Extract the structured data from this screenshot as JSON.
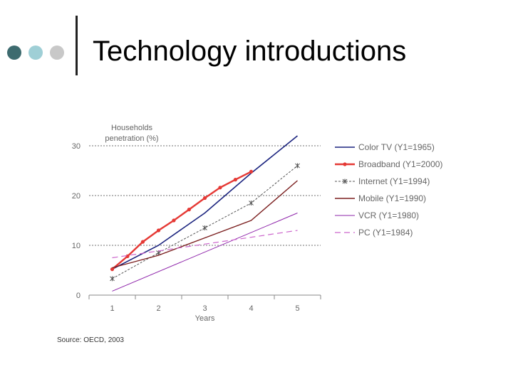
{
  "slide": {
    "title": "Technology introductions",
    "bullet_colors": [
      "#3d6b6f",
      "#9fcfd6",
      "#c8c8c8"
    ],
    "source": "Source: OECD, 2003"
  },
  "chart_data": {
    "type": "line",
    "title": "",
    "ylabel_lines": [
      "Households",
      "penetration (%)"
    ],
    "xlabel": "Years",
    "x": [
      1,
      2,
      3,
      4,
      5
    ],
    "xlim": [
      0.5,
      5.5
    ],
    "ylim": [
      0,
      30
    ],
    "yticks": [
      0,
      10,
      20,
      30
    ],
    "grid": "horizontal dotted",
    "legend_position": "right",
    "series": [
      {
        "name": "Color TV (Y1=1965)",
        "color": "#1a237e",
        "width": 1.6,
        "dash": "",
        "marker": "none",
        "points": [
          [
            1,
            5.2
          ],
          [
            2,
            10
          ],
          [
            3,
            16.5
          ],
          [
            4,
            24.5
          ],
          [
            5,
            32
          ]
        ]
      },
      {
        "name": "Broadband (Y1=2000)",
        "color": "#e53935",
        "width": 2.4,
        "dash": "",
        "marker": "dot",
        "points": [
          [
            1,
            5.2
          ],
          [
            1.33,
            7.8
          ],
          [
            1.66,
            10.7
          ],
          [
            2,
            13
          ],
          [
            2.33,
            15
          ],
          [
            2.66,
            17.2
          ],
          [
            3,
            19.5
          ],
          [
            3.33,
            21.6
          ],
          [
            3.66,
            23.2
          ],
          [
            4,
            24.8
          ]
        ]
      },
      {
        "name": "Internet (Y1=1994)",
        "color": "#555555",
        "width": 1,
        "dash": "3,2",
        "marker": "star",
        "points": [
          [
            1,
            3.3
          ],
          [
            2,
            8.5
          ],
          [
            3,
            13.5
          ],
          [
            4,
            18.5
          ],
          [
            5,
            26
          ]
        ]
      },
      {
        "name": "Mobile (Y1=1990)",
        "color": "#7b1f1f",
        "width": 1.4,
        "dash": "",
        "marker": "none",
        "points": [
          [
            1,
            5.5
          ],
          [
            2,
            8
          ],
          [
            3,
            11.5
          ],
          [
            4,
            15
          ],
          [
            5,
            23
          ]
        ]
      },
      {
        "name": "VCR (Y1=1980)",
        "color": "#8e24aa",
        "width": 1,
        "dash": "",
        "marker": "none",
        "points": [
          [
            1,
            0.8
          ],
          [
            5,
            16.5
          ]
        ]
      },
      {
        "name": "PC (Y1=1984)",
        "color": "#cc66cc",
        "width": 1.2,
        "dash": "8,5",
        "marker": "none",
        "points": [
          [
            1,
            7.5
          ],
          [
            5,
            13
          ]
        ]
      }
    ]
  }
}
